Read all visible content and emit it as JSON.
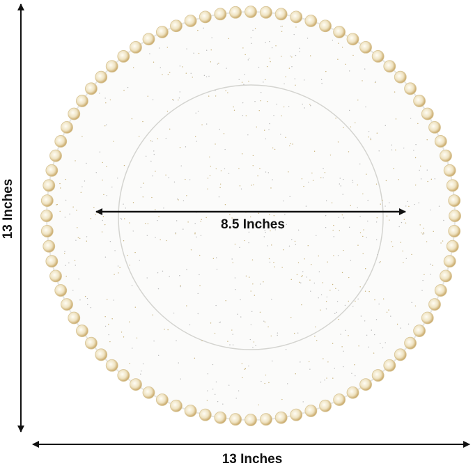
{
  "dimensions": {
    "height": "13 Inches",
    "inner_diameter": "8.5 Inches",
    "width": "13 Inches"
  }
}
